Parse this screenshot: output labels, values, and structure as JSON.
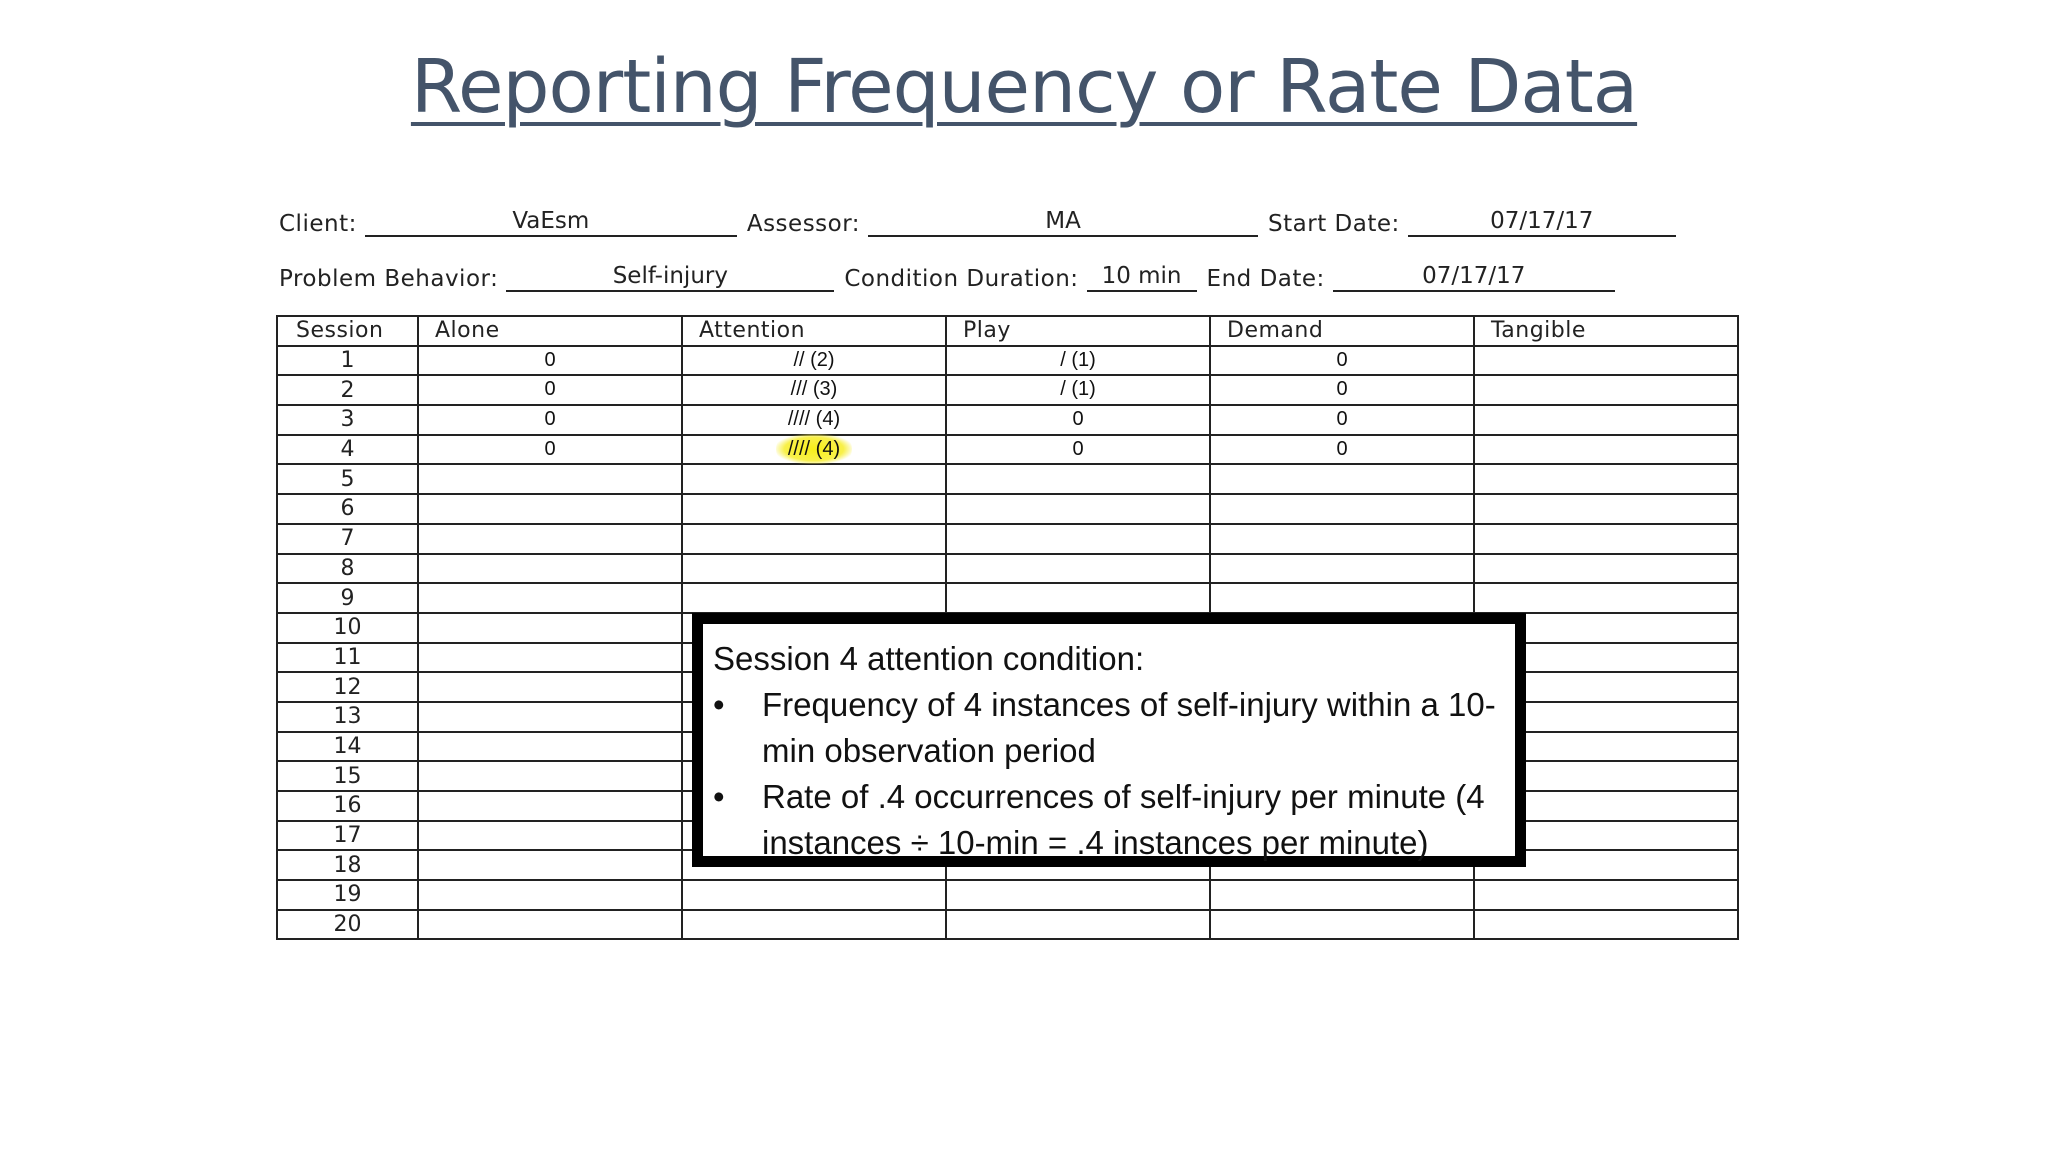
{
  "title": "Reporting Frequency or Rate Data",
  "form": {
    "client_label": "Client:",
    "client_value": "VaEsm",
    "assessor_label": "Assessor:",
    "assessor_value": "MA",
    "start_date_label": "Start Date:",
    "start_date_value": "07/17/17",
    "problem_behavior_label": "Problem Behavior:",
    "problem_behavior_value": "Self-injury",
    "condition_duration_label": "Condition Duration:",
    "condition_duration_value": "10 min",
    "end_date_label": "End Date:",
    "end_date_value": "07/17/17"
  },
  "table": {
    "columns": [
      "Session",
      "Alone",
      "Attention",
      "Play",
      "Demand",
      "Tangible"
    ],
    "rows": [
      {
        "session": "1",
        "alone": "0",
        "attention": "// (2)",
        "play": "/ (1)",
        "demand": "0",
        "tangible": ""
      },
      {
        "session": "2",
        "alone": "0",
        "attention": "/// (3)",
        "play": "/ (1)",
        "demand": "0",
        "tangible": ""
      },
      {
        "session": "3",
        "alone": "0",
        "attention": "//// (4)",
        "play": "0",
        "demand": "0",
        "tangible": ""
      },
      {
        "session": "4",
        "alone": "0",
        "attention": "//// (4)",
        "play": "0",
        "demand": "0",
        "tangible": ""
      },
      {
        "session": "5",
        "alone": "",
        "attention": "",
        "play": "",
        "demand": "",
        "tangible": ""
      },
      {
        "session": "6",
        "alone": "",
        "attention": "",
        "play": "",
        "demand": "",
        "tangible": ""
      },
      {
        "session": "7",
        "alone": "",
        "attention": "",
        "play": "",
        "demand": "",
        "tangible": ""
      },
      {
        "session": "8",
        "alone": "",
        "attention": "",
        "play": "",
        "demand": "",
        "tangible": ""
      },
      {
        "session": "9",
        "alone": "",
        "attention": "",
        "play": "",
        "demand": "",
        "tangible": ""
      },
      {
        "session": "10",
        "alone": "",
        "attention": "",
        "play": "",
        "demand": "",
        "tangible": ""
      },
      {
        "session": "11",
        "alone": "",
        "attention": "",
        "play": "",
        "demand": "",
        "tangible": ""
      },
      {
        "session": "12",
        "alone": "",
        "attention": "",
        "play": "",
        "demand": "",
        "tangible": ""
      },
      {
        "session": "13",
        "alone": "",
        "attention": "",
        "play": "",
        "demand": "",
        "tangible": ""
      },
      {
        "session": "14",
        "alone": "",
        "attention": "",
        "play": "",
        "demand": "",
        "tangible": ""
      },
      {
        "session": "15",
        "alone": "",
        "attention": "",
        "play": "",
        "demand": "",
        "tangible": ""
      },
      {
        "session": "16",
        "alone": "",
        "attention": "",
        "play": "",
        "demand": "",
        "tangible": ""
      },
      {
        "session": "17",
        "alone": "",
        "attention": "",
        "play": "",
        "demand": "",
        "tangible": ""
      },
      {
        "session": "18",
        "alone": "",
        "attention": "",
        "play": "",
        "demand": "",
        "tangible": ""
      },
      {
        "session": "19",
        "alone": "",
        "attention": "",
        "play": "",
        "demand": "",
        "tangible": ""
      },
      {
        "session": "20",
        "alone": "",
        "attention": "",
        "play": "",
        "demand": "",
        "tangible": ""
      }
    ],
    "highlighted_row": 4,
    "highlight_color": "#f7ef1a"
  },
  "callout": {
    "heading": "Session 4 attention condition:",
    "bullet_char": "•",
    "bullets": [
      "Frequency of 4 instances of self-injury within a 10-min observation period",
      "Rate of .4 occurrences of self-injury per minute (4 instances ÷ 10-min = .4 instances per minute)"
    ]
  },
  "colors": {
    "title": "#44546a",
    "border": "#222222",
    "callout_border": "#000000"
  }
}
